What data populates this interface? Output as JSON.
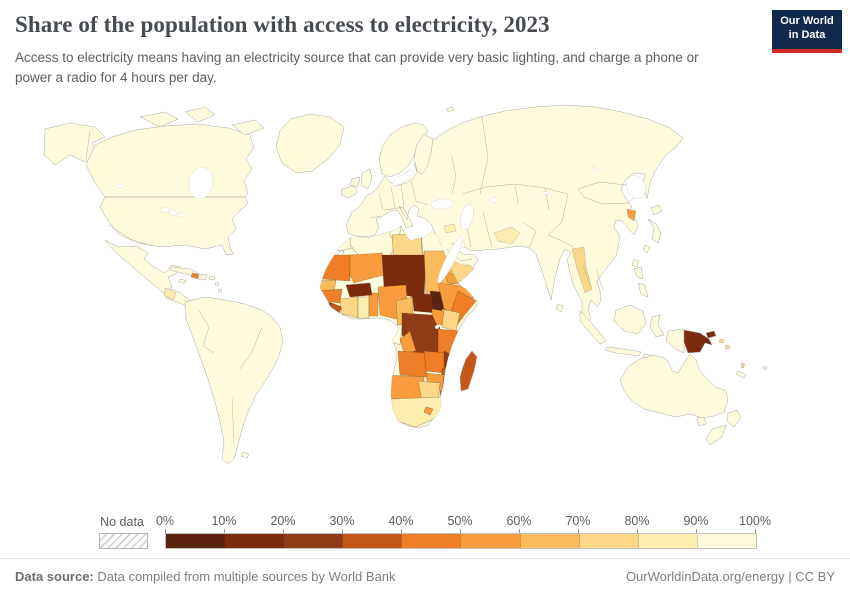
{
  "header": {
    "title": "Share of the population with access to electricity, 2023",
    "subtitle": "Access to electricity means having an electricity source that can provide very basic lighting, and charge a phone or power a radio for 4 hours per day."
  },
  "logo": {
    "line1": "Our World",
    "line2": "in Data",
    "bg_color": "#12294e",
    "accent_color": "#cf2d24"
  },
  "legend": {
    "no_data_label": "No data",
    "tick_labels": [
      "0%",
      "10%",
      "20%",
      "30%",
      "40%",
      "50%",
      "60%",
      "70%",
      "80%",
      "90%",
      "100%"
    ]
  },
  "footer": {
    "source_label": "Data source:",
    "source_text": "Data compiled from multiple sources by World Bank",
    "right_text": "OurWorldinData.org/energy | CC BY"
  },
  "chart_data": {
    "type": "heatmap",
    "subtype": "choropleth-world-map",
    "title": "Share of the population with access to electricity, 2023",
    "unit": "%",
    "year": 2023,
    "legend_position": "bottom",
    "bins": {
      "size": 10,
      "thresholds": [
        0,
        10,
        20,
        30,
        40,
        50,
        60,
        70,
        80,
        90,
        100
      ],
      "colors": [
        "#5c2310",
        "#7c2b0e",
        "#903b17",
        "#c35718",
        "#ee7e27",
        "#f99c3d",
        "#fbbb5c",
        "#fcd787",
        "#fdeeb0",
        "#fdfbdc"
      ]
    },
    "no_data_color": "hatched",
    "default_value_for_unlisted_regions": 100,
    "no_data_regions": [
      "Western Sahara"
    ],
    "regions": {
      "Canada": 100,
      "United States": 100,
      "Greenland": 100,
      "Mexico": 100,
      "Central America": 100,
      "Nicaragua": 87,
      "Cuba": 100,
      "Haiti": 48,
      "Dominican Republic": 100,
      "Jamaica": 100,
      "Puerto Rico": 100,
      "Lesser Antilles": 100,
      "South America": 100,
      "Eurasia": 100,
      "Scandinavia": 100,
      "Finland": 100,
      "United Kingdom": 100,
      "Ireland": 100,
      "Iceland": 100,
      "Syria": 89,
      "Yemen": 76,
      "Afghanistan": 85,
      "Myanmar": 77,
      "North Korea": 54,
      "Japan": 100,
      "Taiwan": 100,
      "Philippines": 100,
      "Sri Lanka": 100,
      "Indonesia": 97,
      "Papua New Guinea": 19,
      "Solomon Islands": 76,
      "Vanuatu": 70,
      "New Caledonia": 100,
      "Fiji": 100,
      "Australia": 100,
      "New Zealand": 100,
      "Morocco": 100,
      "Algeria": 100,
      "Tunisia": 100,
      "Libya": 70,
      "Egypt": 100,
      "Mauritania": 48,
      "Mali": 53,
      "Niger": 19,
      "Chad": 12,
      "Sudan": 63,
      "Senegal": 68,
      "Guinea": 47,
      "Sierra Leone": 29,
      "Liberia": 33,
      "Cote d'Ivoire": 72,
      "Ghana": 85,
      "Benin": 57,
      "Burkina Faso": 19,
      "Nigeria": 59,
      "Cameroon": 65,
      "Central African Republic": 16,
      "South Sudan": 8,
      "Ethiopia": 55,
      "Eritrea": 55,
      "Somalia": 49,
      "Kenya": 76,
      "Uganda": 52,
      "Burundi": 10,
      "Democratic Republic of Congo": 21,
      "Gabon": 93,
      "Congo": 51,
      "Tanzania": 46,
      "Angola": 48,
      "Zambia": 47,
      "Malawi": 27,
      "Mozambique": 36,
      "Zimbabwe": 50,
      "Namibia": 56,
      "Botswana": 76,
      "South Africa": 87,
      "Lesotho": 50,
      "Madagascar": 36
    }
  }
}
